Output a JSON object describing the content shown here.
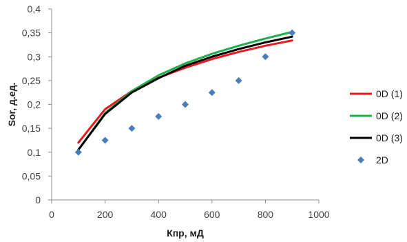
{
  "chart_data": {
    "type": "line",
    "xlabel": "Кпр, мД",
    "ylabel": "Sor, д.ед.",
    "xlim": [
      0,
      1000
    ],
    "ylim": [
      0,
      0.4
    ],
    "x_ticks": [
      {
        "value": 0,
        "label": "0"
      },
      {
        "value": 200,
        "label": "200"
      },
      {
        "value": 400,
        "label": "400"
      },
      {
        "value": 600,
        "label": "600"
      },
      {
        "value": 800,
        "label": "800"
      },
      {
        "value": 1000,
        "label": "1000"
      }
    ],
    "y_ticks": [
      {
        "value": 0,
        "label": "0"
      },
      {
        "value": 0.05,
        "label": "0,05"
      },
      {
        "value": 0.1,
        "label": "0,1"
      },
      {
        "value": 0.15,
        "label": "0,15"
      },
      {
        "value": 0.2,
        "label": "0,2"
      },
      {
        "value": 0.25,
        "label": "0,25"
      },
      {
        "value": 0.3,
        "label": "0,3"
      },
      {
        "value": 0.35,
        "label": "0,35"
      },
      {
        "value": 0.4,
        "label": "0,4"
      }
    ],
    "grid": false,
    "legend_position": "right",
    "series": [
      {
        "name": "0D (1)",
        "kind": "line",
        "color": "#e8181c",
        "x": [
          100,
          200,
          300,
          400,
          500,
          600,
          700,
          800,
          900
        ],
        "y": [
          0.12,
          0.19,
          0.228,
          0.256,
          0.277,
          0.295,
          0.31,
          0.323,
          0.334
        ]
      },
      {
        "name": "0D (2)",
        "kind": "line",
        "color": "#1db04a",
        "x": [
          100,
          200,
          300,
          400,
          500,
          600,
          700,
          800,
          900
        ],
        "y": [
          0.105,
          0.182,
          0.228,
          0.261,
          0.286,
          0.306,
          0.323,
          0.338,
          0.352
        ]
      },
      {
        "name": "0D (3)",
        "kind": "line",
        "color": "#000000",
        "x": [
          100,
          200,
          300,
          400,
          500,
          600,
          700,
          800,
          900
        ],
        "y": [
          0.105,
          0.18,
          0.225,
          0.255,
          0.281,
          0.3,
          0.316,
          0.33,
          0.342
        ]
      },
      {
        "name": "2D",
        "kind": "scatter",
        "color": "#4a7ebb",
        "x": [
          100,
          200,
          300,
          400,
          500,
          600,
          700,
          800,
          900
        ],
        "y": [
          0.1,
          0.125,
          0.15,
          0.175,
          0.2,
          0.225,
          0.25,
          0.3,
          0.35
        ]
      }
    ]
  }
}
